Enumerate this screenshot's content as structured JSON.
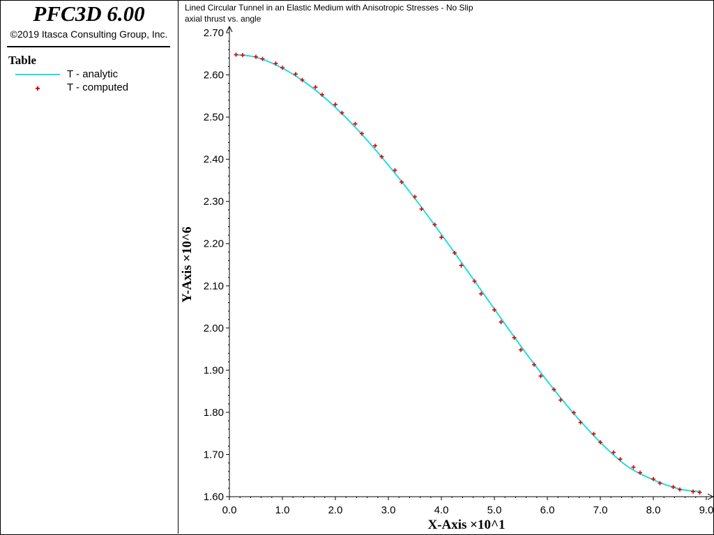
{
  "app": {
    "title": "PFC3D 6.00",
    "copyright": "©2019 Itasca Consulting Group, Inc."
  },
  "legend": {
    "title": "Table",
    "items": [
      {
        "label": "T - analytic",
        "marker": "line",
        "color": "#22dddd"
      },
      {
        "label": "T - computed",
        "marker": "plus",
        "color": "#e00000"
      }
    ]
  },
  "chart_data": {
    "type": "line",
    "title": "Lined Circular Tunnel in an Elastic Medium with Anisotropic Stresses - No Slip",
    "subtitle": "axial thrust vs. angle",
    "xlabel": "X-Axis ×10^1",
    "ylabel": "Y-Axis ×10^6",
    "xlim": [
      0.0,
      9.0
    ],
    "ylim": [
      1.6,
      2.7
    ],
    "xticks": [
      0.0,
      1.0,
      2.0,
      3.0,
      4.0,
      5.0,
      6.0,
      7.0,
      8.0,
      9.0
    ],
    "yticks": [
      1.6,
      1.7,
      1.8,
      1.9,
      2.0,
      2.1,
      2.2,
      2.3,
      2.4,
      2.5,
      2.6,
      2.7
    ],
    "tick_decimals": 2,
    "xtick_decimals": 1,
    "grid": false,
    "legend_placement": "left-panel",
    "series": [
      {
        "name": "T - analytic",
        "style": "line",
        "color": "#22dddd",
        "x": [
          0.1,
          0.5,
          1.0,
          1.5,
          2.0,
          2.5,
          3.0,
          3.5,
          4.0,
          4.5,
          5.0,
          5.5,
          6.0,
          6.5,
          7.0,
          7.5,
          8.0,
          8.5,
          8.9
        ],
        "y": [
          2.648,
          2.642,
          2.616,
          2.576,
          2.523,
          2.459,
          2.386,
          2.307,
          2.222,
          2.134,
          2.045,
          1.957,
          1.874,
          1.797,
          1.729,
          1.673,
          1.64,
          1.618,
          1.612
        ]
      },
      {
        "name": "T - computed",
        "style": "plus",
        "color": "#e00000",
        "x": [
          0.125,
          0.25,
          0.5,
          0.625,
          0.875,
          1.0,
          1.25,
          1.375,
          1.625,
          1.75,
          2.0,
          2.125,
          2.375,
          2.5,
          2.75,
          2.875,
          3.125,
          3.25,
          3.5,
          3.625,
          3.875,
          4.0,
          4.25,
          4.375,
          4.625,
          4.75,
          5.0,
          5.125,
          5.375,
          5.5,
          5.75,
          5.875,
          6.125,
          6.25,
          6.5,
          6.625,
          6.875,
          7.0,
          7.25,
          7.375,
          7.625,
          7.75,
          8.0,
          8.125,
          8.375,
          8.5,
          8.75,
          8.875
        ],
        "y": [
          2.648,
          2.647,
          2.643,
          2.638,
          2.627,
          2.617,
          2.602,
          2.588,
          2.571,
          2.553,
          2.53,
          2.51,
          2.484,
          2.461,
          2.432,
          2.406,
          2.374,
          2.346,
          2.311,
          2.282,
          2.245,
          2.215,
          2.178,
          2.148,
          2.111,
          2.081,
          2.043,
          2.014,
          1.977,
          1.948,
          1.913,
          1.886,
          1.854,
          1.829,
          1.799,
          1.776,
          1.749,
          1.729,
          1.705,
          1.689,
          1.67,
          1.657,
          1.642,
          1.632,
          1.623,
          1.617,
          1.612,
          1.61
        ]
      }
    ]
  }
}
